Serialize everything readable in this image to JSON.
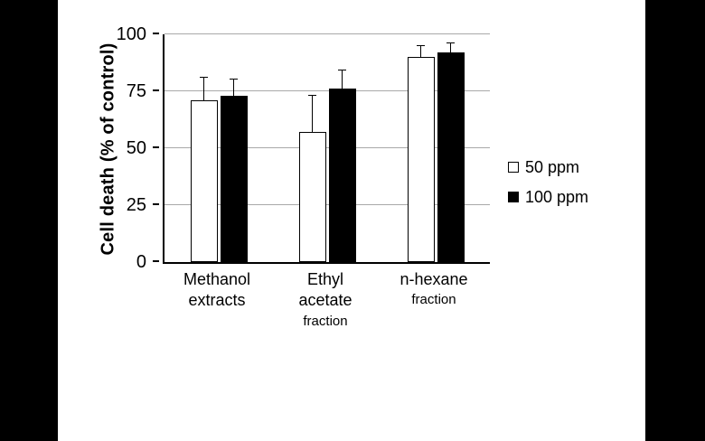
{
  "chart_data": {
    "type": "bar",
    "title": "",
    "ylabel": "Cell death (% of control)",
    "xlabel": "",
    "ylim": [
      0,
      100
    ],
    "yticks": [
      0,
      25,
      50,
      75,
      100
    ],
    "grid": true,
    "legend_position": "right",
    "categories": [
      {
        "lines": [
          "Methanol",
          "extracts"
        ],
        "sub": ""
      },
      {
        "lines": [
          "Ethyl",
          "acetate"
        ],
        "sub": "fraction"
      },
      {
        "lines": [
          "n-hexane"
        ],
        "sub": "fraction"
      }
    ],
    "series": [
      {
        "name": "50 ppm",
        "color": "#ffffff",
        "values": [
          71,
          57,
          90
        ],
        "errors": [
          10,
          16,
          5
        ]
      },
      {
        "name": "100 ppm",
        "color": "#000000",
        "values": [
          73,
          76,
          92
        ],
        "errors": [
          7,
          8,
          4
        ]
      }
    ]
  },
  "colors": {
    "background": "#000000",
    "panel": "#ffffff",
    "gridline": "#a9a9a9",
    "axis": "#000000"
  }
}
